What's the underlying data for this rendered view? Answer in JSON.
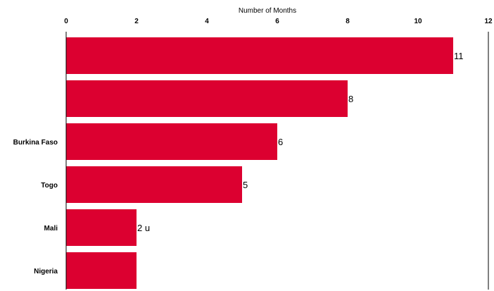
{
  "chart_data": {
    "type": "bar",
    "orientation": "horizontal",
    "xlabel": "Number of Months",
    "xaxis_position": "top",
    "xlim": [
      0,
      12
    ],
    "xticks": [
      "0",
      "2",
      "4",
      "6",
      "8",
      "10",
      "12"
    ],
    "categories": [
      "",
      "",
      "Burkina Faso",
      "Togo",
      "Mali",
      "Nigeria"
    ],
    "values": [
      11,
      8,
      6,
      5,
      2,
      2
    ],
    "data_labels": [
      "11",
      "8",
      "6",
      "5",
      "2 u",
      ""
    ],
    "bar_color": "#dc0030",
    "grid": false,
    "legend": "none"
  }
}
